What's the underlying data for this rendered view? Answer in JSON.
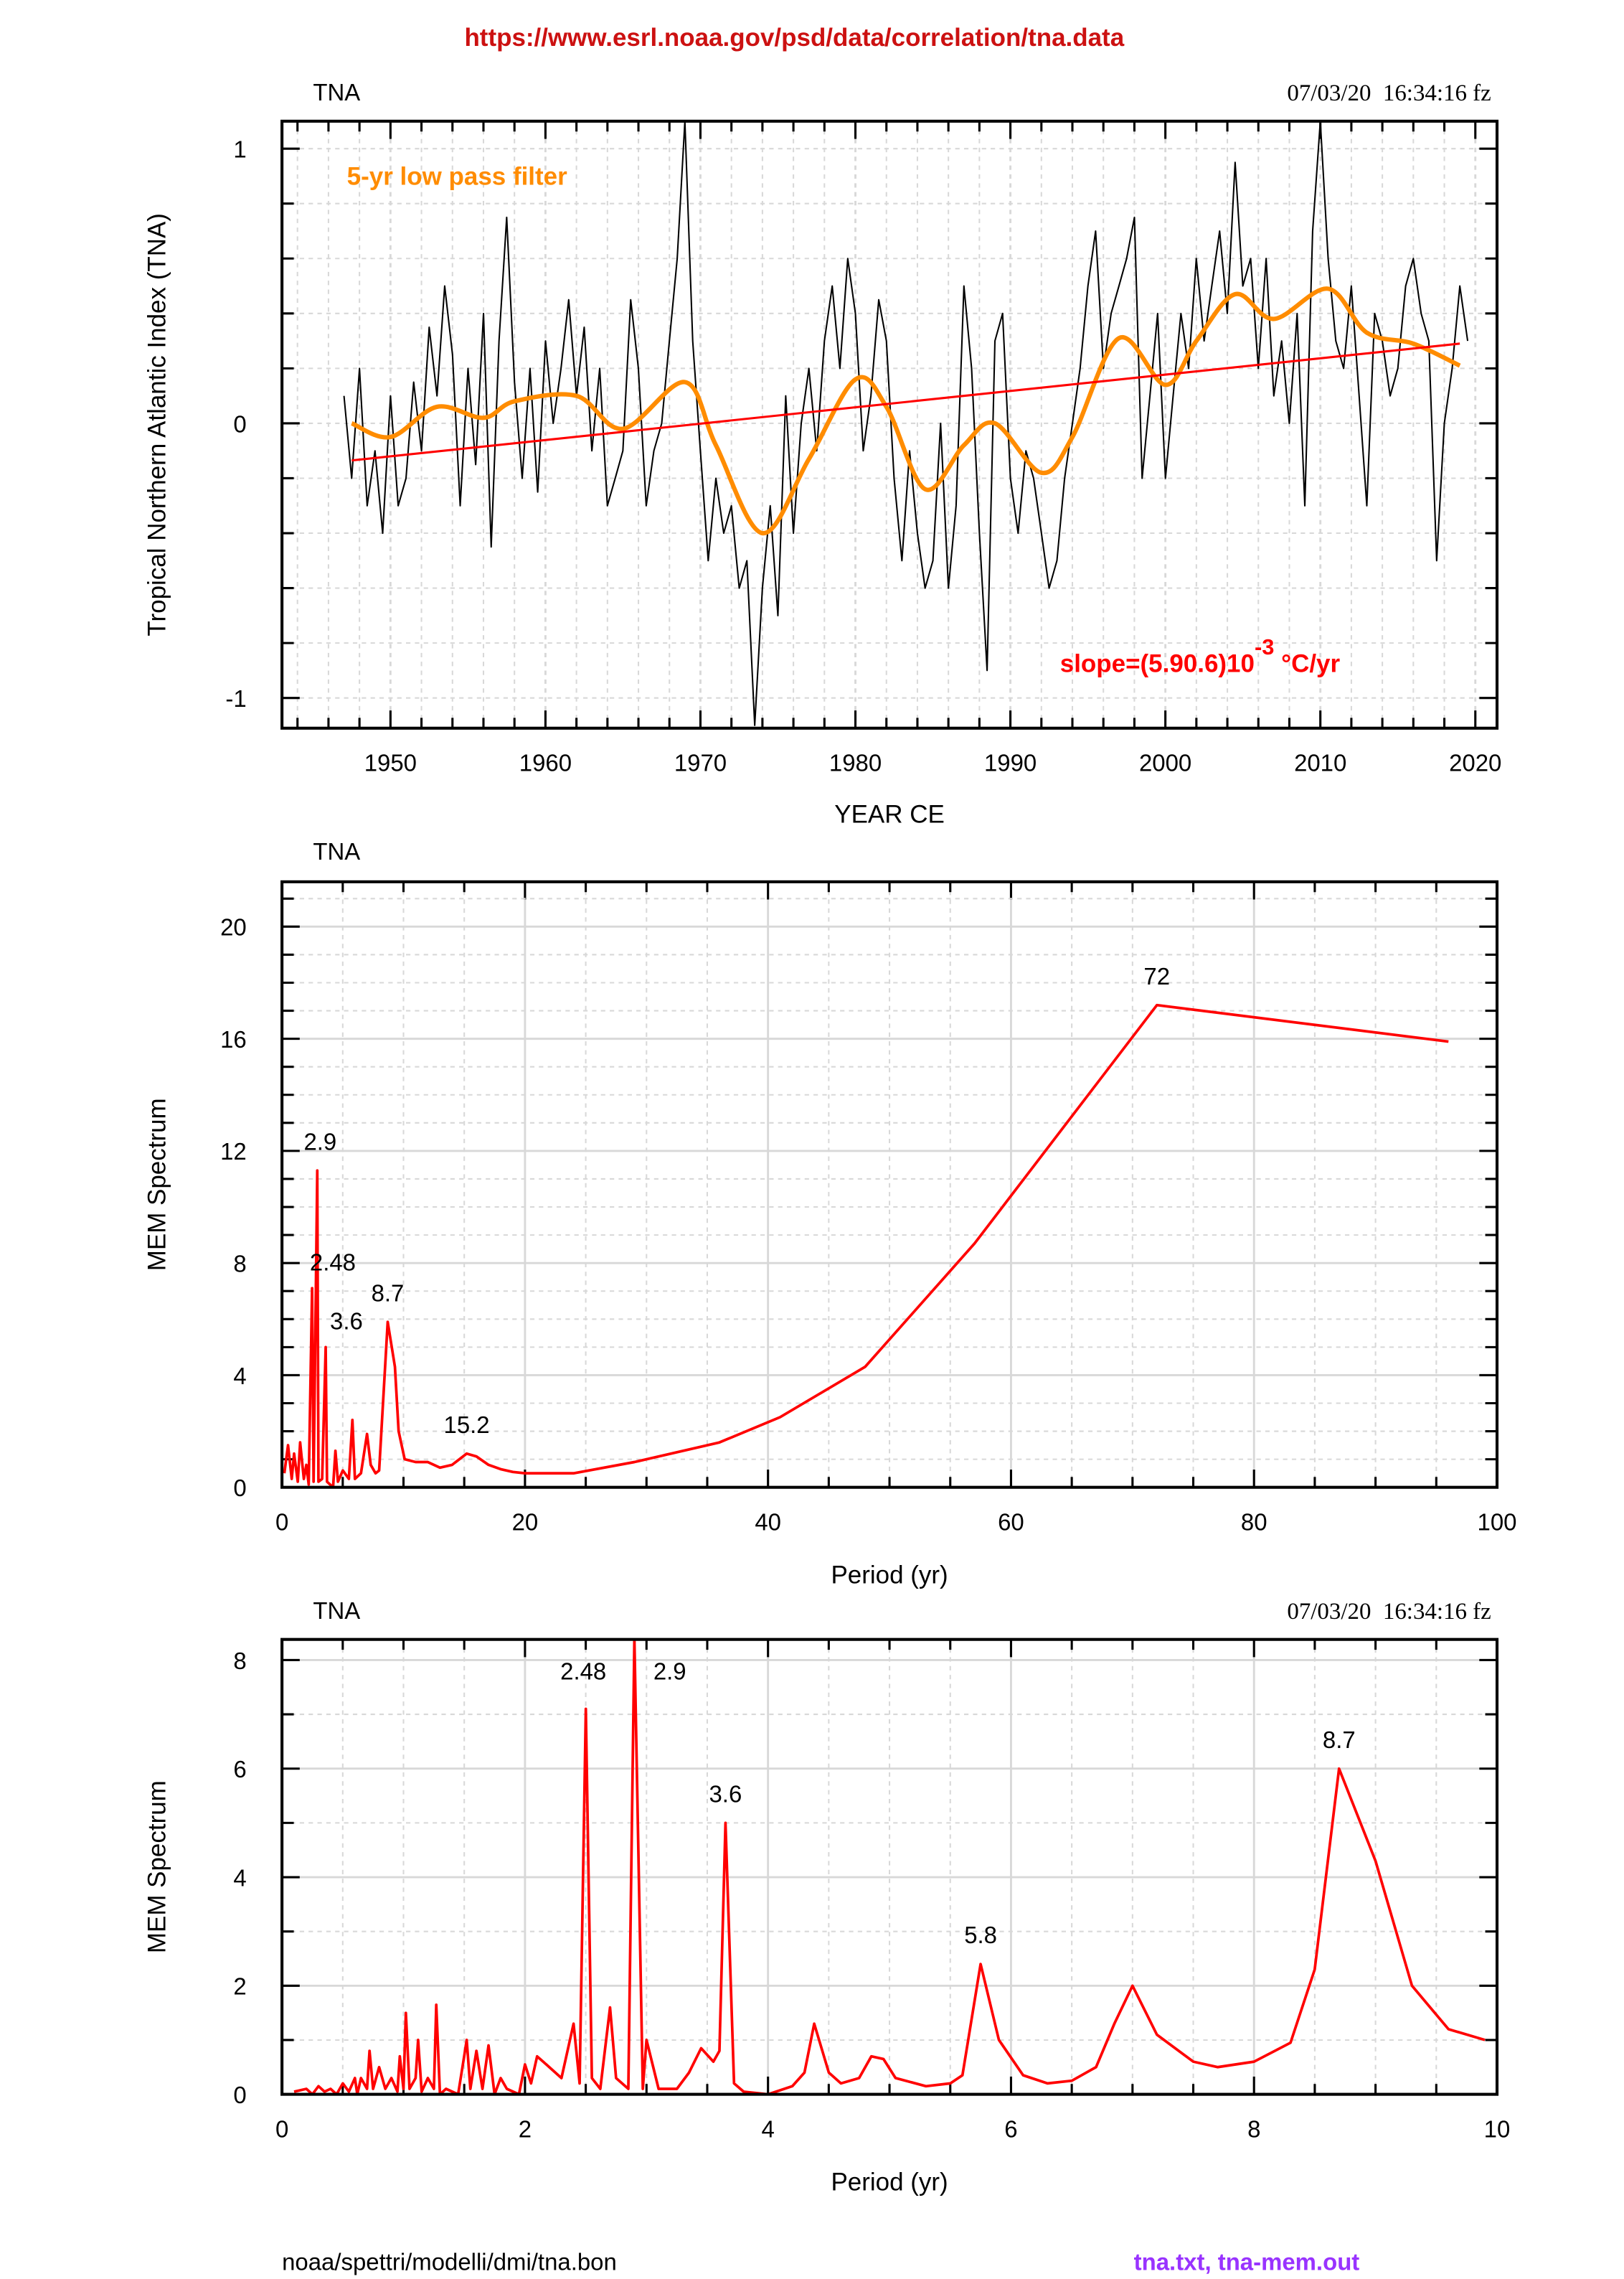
{
  "header": {
    "source_url": "https://www.esrl.noaa.gov/psd/data/correlation/tna.data",
    "timestamp": "07/03/20  16:34:16 fz"
  },
  "footer": {
    "path": "noaa/spettri/modelli/dmi/tna.bon",
    "files": "tna.txt, tna-mem.out"
  },
  "colors": {
    "raw": "#000000",
    "lowpass": "#ff8c00",
    "trend": "#ff0000",
    "spectrum": "#ff0000",
    "url": "#cc1111",
    "files": "#9933ff",
    "grid": "#d8d8d8"
  },
  "chart_data": [
    {
      "type": "line",
      "title": "TNA",
      "xlabel": "YEAR CE",
      "ylabel": "Tropical Northern Atlantic Index (TNA)",
      "xlim": [
        1943,
        2021.4
      ],
      "ylim": [
        -1.11,
        1.1
      ],
      "xticks": [
        1950,
        1960,
        1970,
        1980,
        1990,
        2000,
        2010,
        2020
      ],
      "yticks": [
        -1,
        0,
        1
      ],
      "grid": true,
      "annotations": {
        "lowpass_label": "5-yr low pass filter",
        "slope_label": "slope=(5.90.6)10",
        "slope_exp": "-3",
        "slope_unit": " °C/yr"
      },
      "series": [
        {
          "name": "TNA (raw)",
          "x_start": 1947.0,
          "x_step": 0.5,
          "values": [
            0.1,
            -0.2,
            0.2,
            -0.3,
            -0.1,
            -0.4,
            0.1,
            -0.3,
            -0.2,
            0.15,
            -0.1,
            0.35,
            0.1,
            0.5,
            0.25,
            -0.3,
            0.2,
            -0.15,
            0.4,
            -0.45,
            0.3,
            0.75,
            0.15,
            -0.2,
            0.2,
            -0.25,
            0.3,
            0.0,
            0.2,
            0.45,
            0.1,
            0.35,
            -0.1,
            0.2,
            -0.3,
            -0.2,
            -0.1,
            0.45,
            0.2,
            -0.3,
            -0.1,
            0.0,
            0.3,
            0.6,
            1.1,
            0.3,
            -0.1,
            -0.5,
            -0.2,
            -0.4,
            -0.3,
            -0.6,
            -0.5,
            -1.1,
            -0.6,
            -0.3,
            -0.7,
            0.1,
            -0.4,
            0.0,
            0.2,
            -0.1,
            0.3,
            0.5,
            0.2,
            0.6,
            0.4,
            -0.1,
            0.1,
            0.45,
            0.3,
            -0.2,
            -0.5,
            -0.1,
            -0.4,
            -0.6,
            -0.5,
            0.0,
            -0.6,
            -0.3,
            0.5,
            0.2,
            -0.4,
            -0.9,
            0.3,
            0.4,
            -0.2,
            -0.4,
            -0.1,
            -0.2,
            -0.4,
            -0.6,
            -0.5,
            -0.2,
            0.0,
            0.2,
            0.5,
            0.7,
            0.2,
            0.4,
            0.5,
            0.6,
            0.75,
            -0.2,
            0.1,
            0.4,
            -0.2,
            0.1,
            0.4,
            0.2,
            0.6,
            0.3,
            0.5,
            0.7,
            0.4,
            0.95,
            0.5,
            0.6,
            0.2,
            0.6,
            0.1,
            0.3,
            0.0,
            0.4,
            -0.3,
            0.7,
            1.1,
            0.6,
            0.3,
            0.2,
            0.5,
            0.1,
            -0.3,
            0.4,
            0.3,
            0.1,
            0.2,
            0.5,
            0.6,
            0.4,
            0.3,
            -0.5,
            0.0,
            0.2,
            0.5,
            0.3
          ]
        },
        {
          "name": "5-yr low pass filter",
          "points": [
            [
              1947.5,
              0.0
            ],
            [
              1950,
              -0.05
            ],
            [
              1953,
              0.06
            ],
            [
              1956,
              0.02
            ],
            [
              1958,
              0.08
            ],
            [
              1962,
              0.1
            ],
            [
              1965,
              -0.02
            ],
            [
              1969,
              0.15
            ],
            [
              1971,
              -0.08
            ],
            [
              1974,
              -0.4
            ],
            [
              1977,
              -0.13
            ],
            [
              1980,
              0.16
            ],
            [
              1982,
              0.06
            ],
            [
              1984.5,
              -0.24
            ],
            [
              1987,
              -0.08
            ],
            [
              1989,
              0.0
            ],
            [
              1992,
              -0.18
            ],
            [
              1994,
              -0.05
            ],
            [
              1997,
              0.31
            ],
            [
              2000,
              0.14
            ],
            [
              2002,
              0.3
            ],
            [
              2004.5,
              0.47
            ],
            [
              2007,
              0.38
            ],
            [
              2010.5,
              0.49
            ],
            [
              2013,
              0.33
            ],
            [
              2016,
              0.29
            ],
            [
              2019,
              0.21
            ]
          ]
        },
        {
          "name": "linear trend",
          "points": [
            [
              1947.5,
              -0.135
            ],
            [
              2019,
              0.29
            ]
          ]
        }
      ]
    },
    {
      "type": "line",
      "title": "TNA",
      "xlabel": "Period (yr)",
      "ylabel": "MEM Spectrum",
      "xlim": [
        0,
        100
      ],
      "ylim": [
        0,
        21.6
      ],
      "xticks": [
        0,
        20,
        40,
        60,
        80,
        100
      ],
      "yticks": [
        0,
        4,
        8,
        12,
        16,
        20
      ],
      "grid": true,
      "peak_labels": [
        {
          "x": 2.9,
          "y": 11.3,
          "text": "2.9"
        },
        {
          "x": 2.48,
          "y": 7.1,
          "text": "2.48"
        },
        {
          "x": 3.6,
          "y": 5.0,
          "text": "3.6"
        },
        {
          "x": 8.7,
          "y": 5.9,
          "text": "8.7"
        },
        {
          "x": 15.2,
          "y": 1.2,
          "text": "15.2"
        },
        {
          "x": 72,
          "y": 17.2,
          "text": "72"
        }
      ],
      "series": [
        {
          "name": "MEM spectrum",
          "points": [
            [
              0.2,
              0.5
            ],
            [
              0.5,
              1.5
            ],
            [
              0.8,
              0.3
            ],
            [
              1.0,
              1.2
            ],
            [
              1.3,
              0.2
            ],
            [
              1.5,
              1.6
            ],
            [
              1.8,
              0.3
            ],
            [
              2.0,
              0.8
            ],
            [
              2.2,
              0.1
            ],
            [
              2.48,
              7.1
            ],
            [
              2.6,
              0.2
            ],
            [
              2.9,
              11.3
            ],
            [
              3.0,
              0.2
            ],
            [
              3.3,
              0.3
            ],
            [
              3.6,
              5.0
            ],
            [
              3.7,
              0.2
            ],
            [
              4.2,
              0.0
            ],
            [
              4.4,
              1.3
            ],
            [
              4.6,
              0.2
            ],
            [
              5.0,
              0.6
            ],
            [
              5.5,
              0.3
            ],
            [
              5.8,
              2.4
            ],
            [
              6.0,
              0.3
            ],
            [
              6.5,
              0.5
            ],
            [
              7.0,
              1.9
            ],
            [
              7.3,
              0.8
            ],
            [
              7.7,
              0.5
            ],
            [
              8.0,
              0.6
            ],
            [
              8.7,
              5.9
            ],
            [
              9.3,
              4.3
            ],
            [
              9.6,
              2.0
            ],
            [
              10.1,
              1.0
            ],
            [
              11,
              0.9
            ],
            [
              12,
              0.9
            ],
            [
              13,
              0.7
            ],
            [
              14,
              0.8
            ],
            [
              15.2,
              1.2
            ],
            [
              16,
              1.1
            ],
            [
              17,
              0.8
            ],
            [
              18,
              0.65
            ],
            [
              19,
              0.55
            ],
            [
              20,
              0.5
            ],
            [
              24,
              0.5
            ],
            [
              29,
              0.9
            ],
            [
              36,
              1.6
            ],
            [
              41,
              2.5
            ],
            [
              48,
              4.3
            ],
            [
              57,
              8.7
            ],
            [
              72,
              17.2
            ],
            [
              96,
              15.9
            ]
          ]
        }
      ]
    },
    {
      "type": "line",
      "title": "TNA",
      "xlabel": "Period (yr)",
      "ylabel": "MEM Spectrum",
      "xlim": [
        0,
        10
      ],
      "ylim": [
        0,
        8.38
      ],
      "xticks": [
        0,
        2,
        4,
        6,
        8,
        10
      ],
      "yticks": [
        0,
        2,
        4,
        6,
        8
      ],
      "grid": true,
      "peak_labels": [
        {
          "x": 2.48,
          "y": 7.1,
          "text": "2.48"
        },
        {
          "x": 2.9,
          "y": 7.1,
          "text": "2.9"
        },
        {
          "x": 3.65,
          "y": 5.0,
          "text": "3.6"
        },
        {
          "x": 5.75,
          "y": 2.4,
          "text": "5.8"
        },
        {
          "x": 8.7,
          "y": 6.0,
          "text": "8.7"
        }
      ],
      "series": [
        {
          "name": "MEM spectrum",
          "points": [
            [
              0.1,
              0.05
            ],
            [
              0.2,
              0.1
            ],
            [
              0.25,
              0.0
            ],
            [
              0.3,
              0.15
            ],
            [
              0.35,
              0.05
            ],
            [
              0.4,
              0.1
            ],
            [
              0.45,
              0.0
            ],
            [
              0.5,
              0.2
            ],
            [
              0.55,
              0.05
            ],
            [
              0.6,
              0.3
            ],
            [
              0.62,
              0.0
            ],
            [
              0.65,
              0.3
            ],
            [
              0.7,
              0.1
            ],
            [
              0.72,
              0.8
            ],
            [
              0.75,
              0.1
            ],
            [
              0.8,
              0.5
            ],
            [
              0.85,
              0.1
            ],
            [
              0.9,
              0.3
            ],
            [
              0.95,
              0.05
            ],
            [
              0.97,
              0.7
            ],
            [
              1.0,
              0.1
            ],
            [
              1.02,
              1.5
            ],
            [
              1.05,
              0.1
            ],
            [
              1.1,
              0.3
            ],
            [
              1.12,
              1.0
            ],
            [
              1.15,
              0.05
            ],
            [
              1.2,
              0.3
            ],
            [
              1.25,
              0.1
            ],
            [
              1.27,
              1.65
            ],
            [
              1.3,
              0.0
            ],
            [
              1.35,
              0.1
            ],
            [
              1.45,
              0.0
            ],
            [
              1.5,
              0.7
            ],
            [
              1.52,
              1.0
            ],
            [
              1.55,
              0.1
            ],
            [
              1.6,
              0.8
            ],
            [
              1.65,
              0.1
            ],
            [
              1.7,
              0.9
            ],
            [
              1.75,
              0.0
            ],
            [
              1.8,
              0.3
            ],
            [
              1.85,
              0.1
            ],
            [
              1.95,
              0.0
            ],
            [
              2.0,
              0.55
            ],
            [
              2.05,
              0.2
            ],
            [
              2.1,
              0.7
            ],
            [
              2.15,
              0.6
            ],
            [
              2.3,
              0.3
            ],
            [
              2.4,
              1.3
            ],
            [
              2.45,
              0.2
            ],
            [
              2.5,
              7.1
            ],
            [
              2.55,
              0.3
            ],
            [
              2.62,
              0.1
            ],
            [
              2.7,
              1.6
            ],
            [
              2.75,
              0.3
            ],
            [
              2.85,
              0.1
            ],
            [
              2.9,
              8.4
            ],
            [
              2.97,
              0.1
            ],
            [
              3.0,
              1.0
            ],
            [
              3.1,
              0.1
            ],
            [
              3.25,
              0.1
            ],
            [
              3.35,
              0.4
            ],
            [
              3.45,
              0.85
            ],
            [
              3.55,
              0.6
            ],
            [
              3.6,
              0.8
            ],
            [
              3.65,
              5.0
            ],
            [
              3.72,
              0.2
            ],
            [
              3.8,
              0.05
            ],
            [
              4.0,
              0.0
            ],
            [
              4.2,
              0.15
            ],
            [
              4.3,
              0.4
            ],
            [
              4.38,
              1.3
            ],
            [
              4.5,
              0.4
            ],
            [
              4.6,
              0.2
            ],
            [
              4.75,
              0.3
            ],
            [
              4.85,
              0.7
            ],
            [
              4.95,
              0.65
            ],
            [
              5.05,
              0.3
            ],
            [
              5.3,
              0.15
            ],
            [
              5.5,
              0.2
            ],
            [
              5.6,
              0.35
            ],
            [
              5.75,
              2.4
            ],
            [
              5.9,
              1.0
            ],
            [
              6.1,
              0.35
            ],
            [
              6.3,
              0.2
            ],
            [
              6.5,
              0.25
            ],
            [
              6.7,
              0.5
            ],
            [
              6.85,
              1.3
            ],
            [
              7.0,
              2.0
            ],
            [
              7.2,
              1.1
            ],
            [
              7.5,
              0.6
            ],
            [
              7.7,
              0.5
            ],
            [
              8.0,
              0.6
            ],
            [
              8.3,
              0.95
            ],
            [
              8.5,
              2.3
            ],
            [
              8.7,
              6.0
            ],
            [
              9.0,
              4.3
            ],
            [
              9.3,
              2.0
            ],
            [
              9.6,
              1.2
            ],
            [
              9.9,
              1.0
            ]
          ]
        }
      ]
    }
  ]
}
